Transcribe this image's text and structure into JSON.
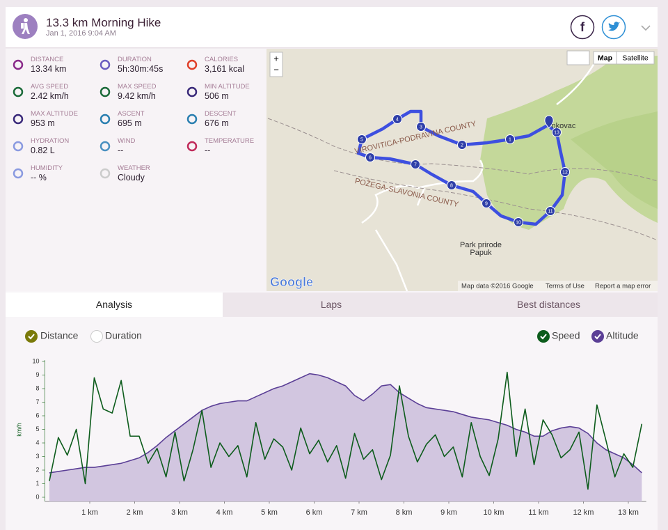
{
  "header": {
    "title": "13.3 km Morning Hike",
    "date": "Jan 1, 2016 9:04 AM",
    "facebook": "f"
  },
  "stats": [
    {
      "label": "Distance",
      "value": "13.34 km"
    },
    {
      "label": "Duration",
      "value": "5h:30m:45s"
    },
    {
      "label": "Calories",
      "value": "3,161 kcal"
    },
    {
      "label": "Avg speed",
      "value": "2.42 km/h"
    },
    {
      "label": "Max speed",
      "value": "9.42 km/h"
    },
    {
      "label": "Min altitude",
      "value": "506 m"
    },
    {
      "label": "Max altitude",
      "value": "953 m"
    },
    {
      "label": "Ascent",
      "value": "695 m"
    },
    {
      "label": "Descent",
      "value": "676 m"
    },
    {
      "label": "Hydration",
      "value": "0.82 L"
    },
    {
      "label": "Wind",
      "value": "--"
    },
    {
      "label": "Temperature",
      "value": "--"
    },
    {
      "label": "Humidity",
      "value": "-- %"
    },
    {
      "label": "Weather",
      "value": "Cloudy"
    }
  ],
  "map": {
    "zoom_in": "+",
    "zoom_out": "−",
    "map_button": "Map",
    "satellite_button": "Satellite",
    "places": [
      "VIROVITICA-PODRAVINA COUNTY",
      "POŽEGA-SLAVONIA COUNTY",
      "Park prirode",
      "Papuk",
      "nkovac"
    ],
    "logo": "Google",
    "footer": [
      "Map data ©2016 Google",
      "Terms of Use",
      "Report a map error"
    ],
    "markers": [
      "1",
      "2",
      "3",
      "4",
      "5",
      "6",
      "7",
      "8",
      "9",
      "10",
      "11",
      "12",
      "13"
    ]
  },
  "tabs": [
    "Analysis",
    "Laps",
    "Best distances"
  ],
  "toggles": {
    "x_axis": [
      "Distance",
      "Duration"
    ]
  },
  "chart_data": {
    "type": "line",
    "y_label": "km/h",
    "x": [
      0.1,
      0.3,
      0.5,
      0.7,
      0.9,
      1.1,
      1.3,
      1.5,
      1.7,
      1.9,
      2.1,
      2.3,
      2.5,
      2.7,
      2.9,
      3.1,
      3.3,
      3.5,
      3.7,
      3.9,
      4.1,
      4.3,
      4.5,
      4.7,
      4.9,
      5.1,
      5.3,
      5.5,
      5.7,
      5.9,
      6.1,
      6.3,
      6.5,
      6.7,
      6.9,
      7.1,
      7.3,
      7.5,
      7.7,
      7.9,
      8.1,
      8.3,
      8.5,
      8.7,
      8.9,
      9.1,
      9.3,
      9.5,
      9.7,
      9.9,
      10.1,
      10.3,
      10.5,
      10.7,
      10.9,
      11.1,
      11.3,
      11.5,
      11.7,
      11.9,
      12.1,
      12.3,
      12.5,
      12.7,
      12.9,
      13.1,
      13.3
    ],
    "series": [
      {
        "name": "Speed",
        "color": "#0d5c1c",
        "values": [
          1.2,
          4.4,
          3.1,
          5.0,
          1.0,
          8.8,
          6.5,
          6.2,
          8.6,
          4.5,
          4.5,
          2.5,
          3.6,
          1.5,
          4.8,
          1.2,
          3.5,
          6.4,
          2.2,
          4.0,
          3.0,
          3.8,
          1.5,
          5.5,
          2.8,
          4.3,
          3.7,
          2.0,
          5.1,
          3.2,
          4.2,
          2.6,
          3.8,
          1.4,
          4.7,
          2.8,
          3.5,
          1.3,
          3.1,
          8.2,
          4.5,
          2.6,
          3.9,
          4.6,
          3.0,
          3.7,
          1.5,
          5.5,
          3.0,
          1.6,
          4.3,
          9.2,
          3.0,
          6.5,
          2.4,
          5.7,
          4.6,
          2.9,
          3.5,
          4.8,
          0.6,
          6.8,
          4.2,
          1.5,
          3.2,
          2.2,
          5.4
        ]
      },
      {
        "name": "Altitude",
        "color": "#5b3f96",
        "fill": "#d2c6e0",
        "values": [
          1.8,
          1.9,
          2.0,
          2.1,
          2.2,
          2.2,
          2.3,
          2.4,
          2.5,
          2.7,
          2.9,
          3.3,
          3.8,
          4.4,
          4.9,
          5.4,
          5.9,
          6.4,
          6.7,
          6.9,
          7.0,
          7.1,
          7.1,
          7.4,
          7.7,
          8.0,
          8.2,
          8.5,
          8.8,
          9.1,
          9.0,
          8.8,
          8.5,
          8.2,
          7.5,
          7.1,
          7.6,
          8.2,
          8.3,
          7.7,
          7.3,
          6.9,
          6.6,
          6.5,
          6.4,
          6.3,
          6.1,
          5.9,
          5.8,
          5.7,
          5.5,
          5.3,
          5.0,
          4.8,
          4.5,
          4.5,
          4.9,
          5.1,
          5.2,
          5.1,
          4.7,
          4.0,
          3.5,
          3.2,
          2.9,
          2.4,
          1.8
        ]
      }
    ],
    "xlim": [
      0,
      13.4
    ],
    "ylim": [
      0,
      10
    ],
    "xticks": [
      {
        "value": 1,
        "label": "1 km"
      },
      {
        "value": 2,
        "label": "2 km"
      },
      {
        "value": 3,
        "label": "3 km"
      },
      {
        "value": 4,
        "label": "4 km"
      },
      {
        "value": 5,
        "label": "5 km"
      },
      {
        "value": 6,
        "label": "6 km"
      },
      {
        "value": 7,
        "label": "7 km"
      },
      {
        "value": 8,
        "label": "8 km"
      },
      {
        "value": 9,
        "label": "9 km"
      },
      {
        "value": 10,
        "label": "10 km"
      },
      {
        "value": 11,
        "label": "11 km"
      },
      {
        "value": 12,
        "label": "12 km"
      },
      {
        "value": 13,
        "label": "13 km"
      }
    ],
    "yticks": [
      0,
      1,
      2,
      3,
      4,
      5,
      6,
      7,
      8,
      9,
      10
    ]
  }
}
